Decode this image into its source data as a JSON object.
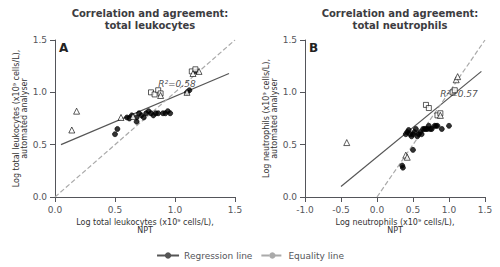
{
  "chart_data": [
    {
      "type": "scatter",
      "title": "Correlation and agreement:\ntotal leukocytes",
      "xlabel": "Log total leukocytes (x10⁹ cells/L),\nNPT",
      "ylabel": "Log total leukocytes (x10⁹ cells/L),\nautomated analyser",
      "panel_label": "A",
      "xlim": [
        0.0,
        1.5
      ],
      "ylim": [
        0.0,
        1.5
      ],
      "xticks": [
        {
          "value": 0.0,
          "label": "0.0"
        },
        0.5,
        {
          "value": 1.0,
          "label": "1.0"
        },
        1.5
      ],
      "yticks": [
        {
          "value": 0.0,
          "label": "0.0"
        },
        0.5,
        {
          "value": 1.0,
          "label": "1.0"
        },
        1.5
      ],
      "grid": false,
      "legend": "bottom",
      "annotations": [
        {
          "text": "R²=0.58",
          "x": 0.86,
          "y": 1.04
        }
      ],
      "series": [
        {
          "name": "Regression line",
          "type": "line",
          "color": "#555555",
          "line_style": "solid",
          "x": [
            0.05,
            1.45
          ],
          "values": [
            0.5,
            1.18
          ]
        },
        {
          "name": "Equality line",
          "type": "line",
          "color": "#aaaaaa",
          "line_style": "dashed",
          "x": [
            0.0,
            1.5
          ],
          "values": [
            0.0,
            1.5
          ]
        },
        {
          "type": "scatter",
          "marker": "circle",
          "color": "black",
          "x": [
            0.68,
            0.7,
            0.72,
            0.74,
            0.76,
            0.78,
            0.8,
            0.82,
            0.84,
            0.86,
            0.6,
            0.62,
            0.64,
            0.68,
            0.9,
            0.92,
            0.94,
            0.96,
            0.5,
            0.52,
            1.1,
            1.12,
            1.18
          ],
          "values": [
            0.76,
            0.8,
            0.78,
            0.76,
            0.8,
            0.82,
            0.8,
            0.78,
            0.8,
            0.8,
            0.76,
            0.75,
            0.78,
            0.72,
            0.8,
            0.8,
            0.82,
            0.8,
            0.6,
            0.65,
            1.0,
            1.02,
            1.2
          ]
        },
        {
          "type": "scatter",
          "marker": "square",
          "color": "white",
          "x": [
            0.8,
            0.83,
            0.86,
            0.88,
            1.14,
            1.17
          ],
          "values": [
            1.0,
            0.98,
            1.02,
            0.99,
            1.2,
            1.22
          ]
        },
        {
          "type": "scatter",
          "marker": "triangle",
          "color": "white",
          "x": [
            0.14,
            0.18,
            0.55,
            0.65,
            0.88,
            1.1,
            1.15,
            1.2
          ],
          "values": [
            0.64,
            0.82,
            0.76,
            0.77,
            0.97,
            1.0,
            1.18,
            1.2
          ]
        }
      ]
    },
    {
      "type": "scatter",
      "title": "Correlation and agreement:\ntotal neutrophils",
      "xlabel": "Log neutrophils (x10⁹ cells/L),\nNPT",
      "ylabel": "Log neutrophils (x10⁹ cells/L),\nautomated analyser",
      "panel_label": "B",
      "xlim": [
        -1.0,
        1.5
      ],
      "ylim": [
        0.0,
        1.5
      ],
      "xticks": [
        {
          "value": -1.0,
          "label": "-1.0"
        },
        -0.5,
        {
          "value": 0.0,
          "label": "0.0"
        },
        0.5,
        {
          "value": 1.0,
          "label": "1.0"
        },
        1.5
      ],
      "yticks": [
        {
          "value": 0.0,
          "label": "0.0"
        },
        0.5,
        {
          "value": 1.0,
          "label": "1.0"
        },
        1.5
      ],
      "grid": false,
      "legend": "bottom",
      "annotations": [
        {
          "text": "R²=0.57",
          "x": 0.88,
          "y": 0.94
        }
      ],
      "series": [
        {
          "name": "Regression line",
          "type": "line",
          "color": "#555555",
          "line_style": "solid",
          "x": [
            -0.5,
            1.45
          ],
          "values": [
            0.1,
            1.2
          ]
        },
        {
          "name": "Equality line",
          "type": "line",
          "color": "#aaaaaa",
          "line_style": "dashed",
          "x": [
            0.0,
            1.5
          ],
          "values": [
            0.0,
            1.5
          ]
        },
        {
          "type": "scatter",
          "marker": "circle",
          "color": "black",
          "x": [
            0.4,
            0.42,
            0.44,
            0.46,
            0.48,
            0.5,
            0.52,
            0.54,
            0.56,
            0.58,
            0.6,
            0.62,
            0.64,
            0.66,
            0.68,
            0.7,
            0.72,
            0.74,
            0.76,
            0.8,
            0.82,
            0.84,
            0.9,
            0.35,
            0.36,
            0.5,
            1.0
          ],
          "values": [
            0.6,
            0.62,
            0.64,
            0.6,
            0.58,
            0.6,
            0.62,
            0.65,
            0.58,
            0.6,
            0.62,
            0.6,
            0.65,
            0.65,
            0.65,
            0.65,
            0.68,
            0.65,
            0.65,
            0.68,
            0.68,
            0.68,
            0.65,
            0.3,
            0.28,
            0.45,
            0.68
          ]
        },
        {
          "type": "scatter",
          "marker": "square",
          "color": "white",
          "x": [
            0.68,
            0.72,
            0.84,
            0.88,
            1.05,
            1.08
          ],
          "values": [
            0.88,
            0.85,
            0.78,
            0.8,
            1.0,
            1.02
          ]
        },
        {
          "type": "scatter",
          "marker": "triangle",
          "color": "white",
          "x": [
            -0.42,
            0.4,
            0.42,
            0.88,
            1.1,
            1.12
          ],
          "values": [
            0.52,
            0.4,
            0.38,
            0.78,
            1.12,
            1.15
          ]
        }
      ]
    }
  ]
}
